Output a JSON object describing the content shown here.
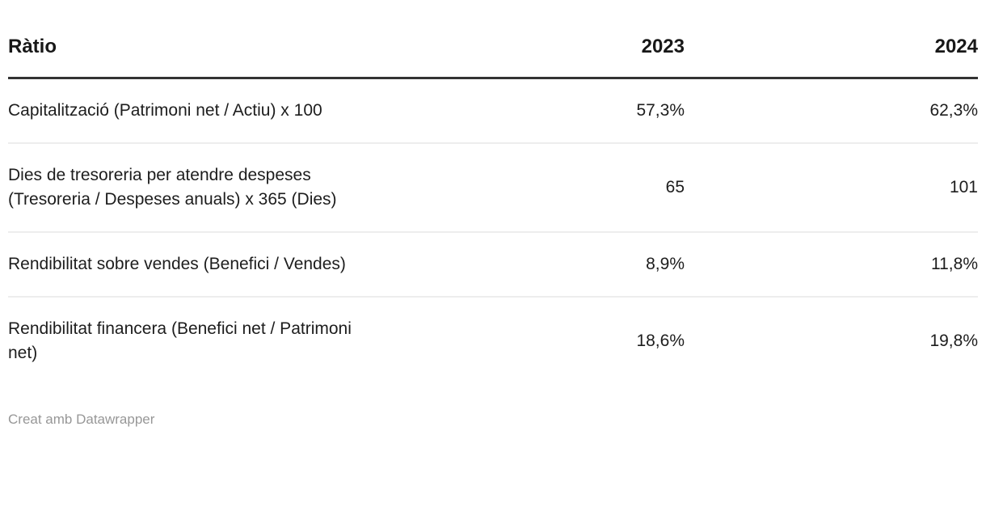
{
  "table": {
    "columns": [
      "Ràtio",
      "2023",
      "2024"
    ],
    "rows": [
      {
        "label": "Capitalització (Patrimoni net / Actiu) x 100",
        "values": [
          "57,3%",
          "62,3%"
        ]
      },
      {
        "label": "Dies de tresoreria per atendre despeses (Tresoreria / Despeses anuals) x 365 (Dies)",
        "values": [
          "65",
          "101"
        ]
      },
      {
        "label": "Rendibilitat sobre vendes (Benefici / Vendes)",
        "values": [
          "8,9%",
          "11,8%"
        ]
      },
      {
        "label": "Rendibilitat financera (Benefici net / Patrimoni net)",
        "values": [
          "18,6%",
          "19,8%"
        ]
      }
    ]
  },
  "footer": {
    "attribution": "Creat amb Datawrapper"
  },
  "colors": {
    "text": "#1d1d1d",
    "header_rule": "#333333",
    "row_separator": "#ededed",
    "attribution_text": "#979797",
    "background": "#ffffff"
  },
  "chart_data": {
    "type": "table",
    "title": "",
    "columns": [
      "Ràtio",
      "2023",
      "2024"
    ],
    "rows": [
      [
        "Capitalització (Patrimoni net / Actiu) x 100",
        "57,3%",
        "62,3%"
      ],
      [
        "Dies de tresoreria per atendre despeses (Tresoreria / Despeses anuals) x 365 (Dies)",
        "65",
        "101"
      ],
      [
        "Rendibilitat sobre vendes (Benefici / Vendes)",
        "8,9%",
        "11,8%"
      ],
      [
        "Rendibilitat financera (Benefici net / Patrimoni net)",
        "18,6%",
        "19,8%"
      ]
    ],
    "series": [
      {
        "name": "2023",
        "values": [
          57.3,
          65,
          8.9,
          18.6
        ]
      },
      {
        "name": "2024",
        "values": [
          62.3,
          101,
          11.8,
          19.8
        ]
      }
    ],
    "value_formats": [
      "percent (comma decimal)",
      "days (integer)",
      "percent (comma decimal)",
      "percent (comma decimal)"
    ],
    "attribution": "Creat amb Datawrapper",
    "layout_hints": {
      "header_rule": "thick dark line",
      "row_separators": "thin light gray",
      "value_alignment": "right"
    }
  }
}
